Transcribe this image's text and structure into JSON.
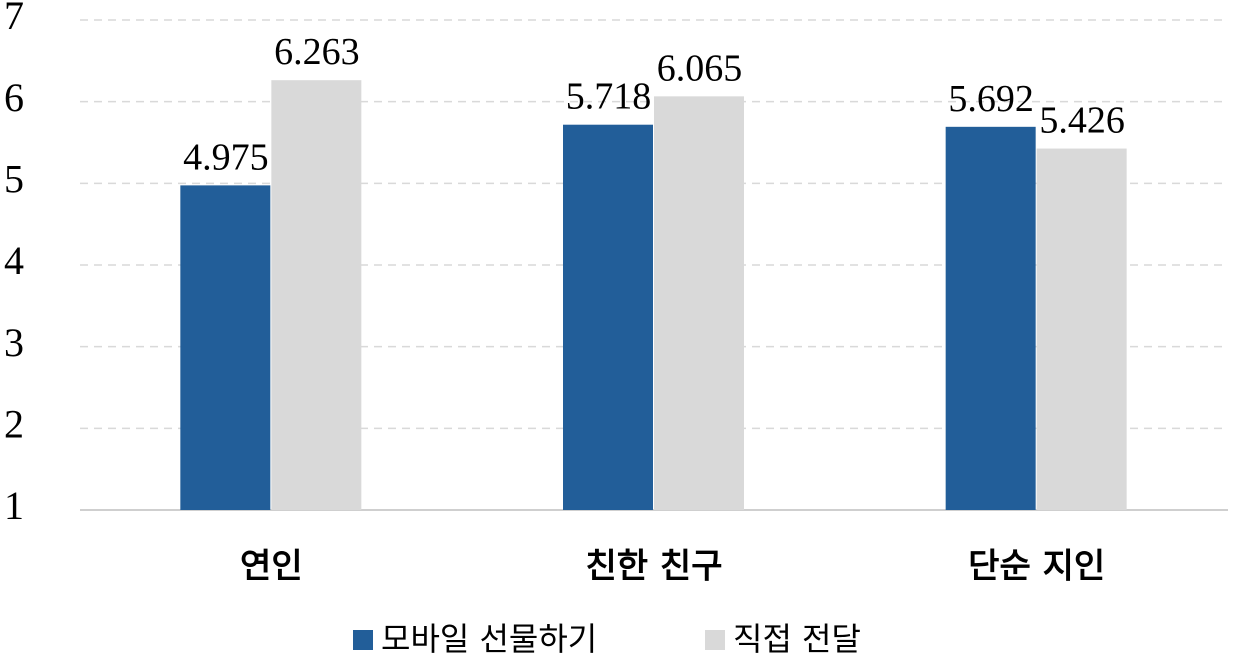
{
  "chart_data": {
    "type": "bar",
    "categories": [
      "연인",
      "친한 친구",
      "단순 지인"
    ],
    "series": [
      {
        "name": "모바일 선물하기",
        "color": "#225e99",
        "values": [
          4.975,
          5.718,
          5.692
        ]
      },
      {
        "name": "직접 전달",
        "color": "#d9d9d9",
        "values": [
          6.263,
          6.065,
          5.426
        ]
      }
    ],
    "ylim": [
      1,
      7
    ],
    "yticks": [
      1,
      2,
      3,
      4,
      5,
      6,
      7
    ],
    "grid": true
  }
}
